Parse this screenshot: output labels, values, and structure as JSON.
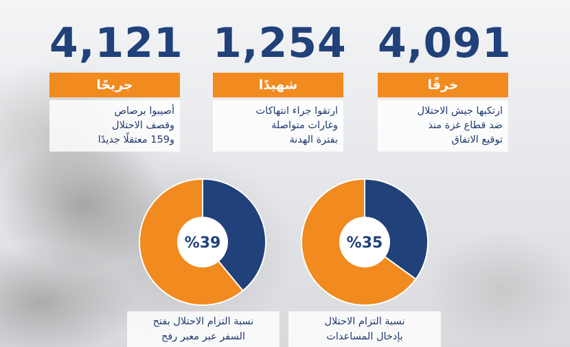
{
  "stats": [
    {
      "value": "4,121",
      "label": "جريحًا",
      "desc": [
        "أصيبوا برصاص",
        "وقصف الاحتلال",
        "و159 معتقلًا جديدًا"
      ]
    },
    {
      "value": "1,254",
      "label": "شهيدًا",
      "desc": [
        "ارتقوا جراء انتهاكات",
        "وغارات متواصلة",
        "بفترة الهدنة"
      ]
    },
    {
      "value": "4,091",
      "label": "خرقًا",
      "desc": [
        "ارتكبها جيش الاحتلال",
        "ضد قطاع غزة منذ",
        "توقيع الاتفاق"
      ]
    }
  ],
  "colors": {
    "orange": "#f18a1f",
    "navy": "#20417a"
  },
  "chart_data": [
    {
      "type": "pie",
      "center_label": "%39",
      "values": [
        39,
        61
      ],
      "caption": [
        "نسبة التزام الاحتلال بفتح",
        "السفر عبر معبر رفح"
      ]
    },
    {
      "type": "pie",
      "center_label": "%35",
      "values": [
        35,
        65
      ],
      "caption": [
        "نسبة التزام الاحتلال",
        "بإدخال المساعدات"
      ]
    }
  ]
}
